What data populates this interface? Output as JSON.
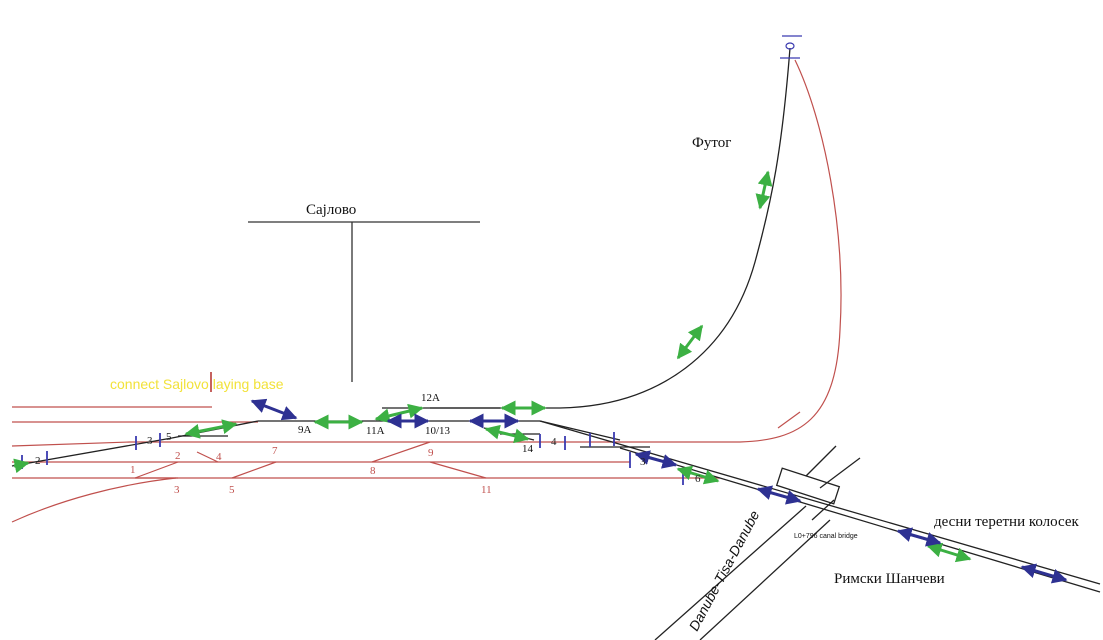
{
  "places": {
    "sajlovo": "Сајлово",
    "futog": "Футог",
    "rimski": "Римски Шанчеви",
    "right_freight": "десни теретни колосек"
  },
  "annotations": {
    "connect": "connect Sajlovo laying base",
    "canal": "Danube-Tisa-Danube",
    "bridge": "L0+796 canal bridge"
  },
  "switches": {
    "s12a": "12A",
    "s9a": "9A",
    "s11a": "11A",
    "s10_13": "10/13",
    "s14": "14",
    "s1": "1",
    "s2": "2",
    "s3": "3",
    "s4": "4",
    "s5": "5",
    "s6": "6",
    "s7": "7",
    "s8": "8",
    "s9": "9",
    "s11": "11"
  },
  "track_numbers": {
    "t2": "2",
    "t3": "3",
    "t5": "5",
    "t4": "4",
    "t3b": "3",
    "t6": "6"
  },
  "colors": {
    "track_black": "#222222",
    "track_red": "#c0504d",
    "arrow_green": "#3cb043",
    "arrow_blue": "#2e3192",
    "annotation_yellow": "#f2e23a",
    "signal_blue": "#3a3ab0"
  }
}
